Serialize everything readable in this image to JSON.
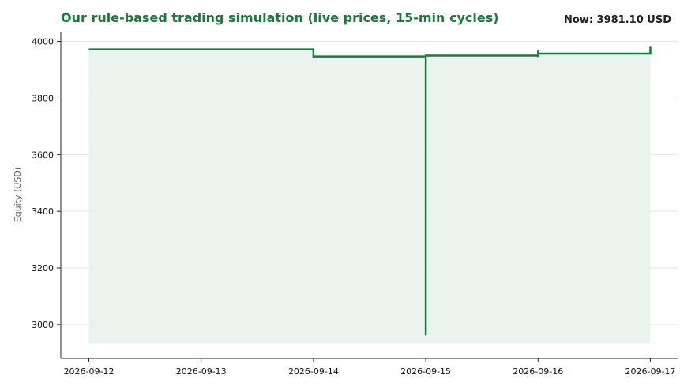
{
  "header": {
    "title": "Our rule-based trading simulation (live prices, 15-min cycles)",
    "now_label": "Now: 3981.10 USD"
  },
  "colors": {
    "line": "#1a7a3a",
    "fill": "#e8f2ec",
    "grid": "#e6e6e6",
    "axis": "#222222"
  },
  "chart_data": {
    "type": "line",
    "title": "Our rule-based trading simulation (live prices, 15-min cycles)",
    "xlabel": "",
    "ylabel": "Equity (USD)",
    "ylim": [
      2880,
      4035
    ],
    "yticks": [
      3000,
      3200,
      3400,
      3600,
      3800,
      4000
    ],
    "xlim": [
      "2026-09-11 18:00",
      "2026-09-17 06:00"
    ],
    "xticks": [
      "2026-09-12",
      "2026-09-13",
      "2026-09-14",
      "2026-09-15",
      "2026-09-16",
      "2026-09-17"
    ],
    "grid": "y",
    "fill_baseline": 2935,
    "series": [
      {
        "values": [
          {
            "x": "2026-09-12 00:00",
            "y": 3972
          },
          {
            "x": "2026-09-14 00:00",
            "y": 3972
          },
          {
            "x": "2026-09-14 00:00",
            "y": 3940
          },
          {
            "x": "2026-09-14 00:00",
            "y": 3947
          },
          {
            "x": "2026-09-15 00:00",
            "y": 3947
          },
          {
            "x": "2026-09-15 00:00",
            "y": 2963
          },
          {
            "x": "2026-09-15 00:00",
            "y": 3950
          },
          {
            "x": "2026-09-16 00:00",
            "y": 3950
          },
          {
            "x": "2026-09-16 00:00",
            "y": 3945
          },
          {
            "x": "2026-09-16 00:00",
            "y": 3968
          },
          {
            "x": "2026-09-16 00:00",
            "y": 3957
          },
          {
            "x": "2026-09-17 00:00",
            "y": 3957
          },
          {
            "x": "2026-09-17 00:00",
            "y": 3981.1
          }
        ]
      }
    ]
  }
}
